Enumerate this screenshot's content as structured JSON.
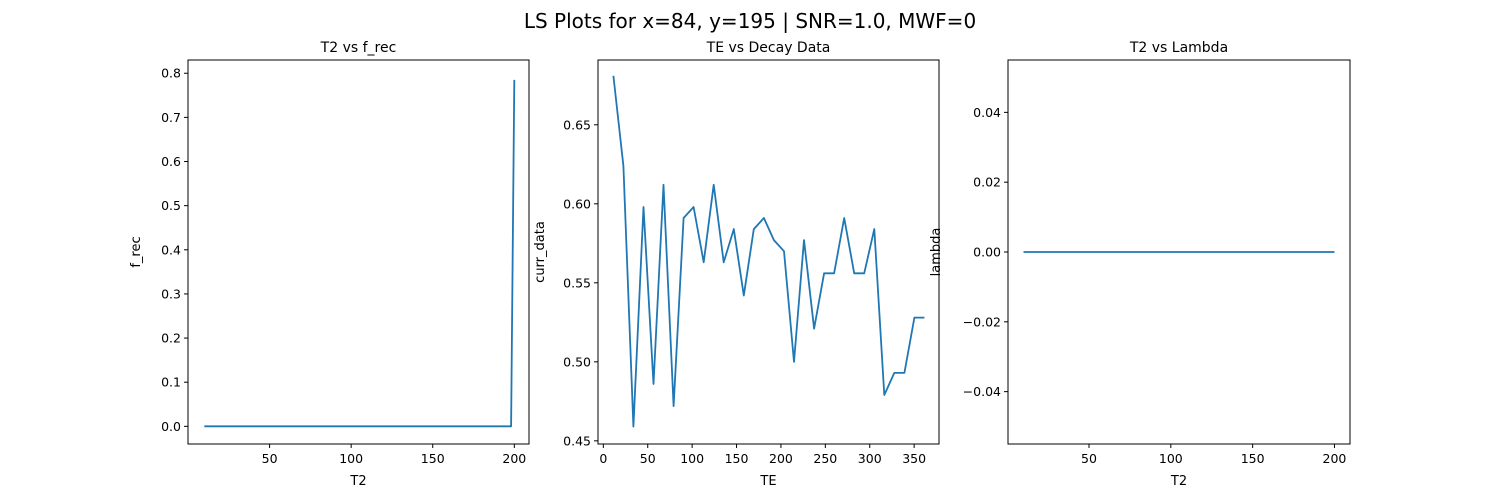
{
  "figure_title": "LS Plots for x=84, y=195 | SNR=1.0, MWF=0",
  "line_color": "#1f77b4",
  "chart_data": [
    {
      "type": "line",
      "title": "T2 vs f_rec",
      "xlabel": "T2",
      "ylabel": "f_rec",
      "xlim": [
        0,
        209
      ],
      "ylim": [
        -0.04,
        0.83
      ],
      "xticks": [
        50,
        100,
        150,
        200
      ],
      "xtick_labels": [
        "50",
        "100",
        "150",
        "200"
      ],
      "yticks": [
        0.0,
        0.1,
        0.2,
        0.3,
        0.4,
        0.5,
        0.6,
        0.7,
        0.8
      ],
      "ytick_labels": [
        "0.0",
        "0.1",
        "0.2",
        "0.3",
        "0.4",
        "0.5",
        "0.6",
        "0.7",
        "0.8"
      ],
      "series": [
        {
          "x": [
            10,
            198,
            200
          ],
          "y": [
            0.0,
            0.0,
            0.785
          ]
        }
      ]
    },
    {
      "type": "line",
      "title": "TE vs Decay Data",
      "xlabel": "TE",
      "ylabel": "curr_data",
      "xlim": [
        -6,
        378
      ],
      "ylim": [
        0.448,
        0.691
      ],
      "xticks": [
        0,
        50,
        100,
        150,
        200,
        250,
        300,
        350
      ],
      "xtick_labels": [
        "0",
        "50",
        "100",
        "150",
        "200",
        "250",
        "300",
        "350"
      ],
      "yticks": [
        0.45,
        0.5,
        0.55,
        0.6,
        0.65
      ],
      "ytick_labels": [
        "0.45",
        "0.50",
        "0.55",
        "0.60",
        "0.65"
      ],
      "series": [
        {
          "x": [
            11.3,
            22.6,
            33.9,
            39,
            45.2,
            56.5,
            67.8,
            79.1,
            90.4,
            101.7,
            113,
            124.3,
            135.6,
            146.9,
            158.2,
            169.5,
            180.8,
            192.1,
            203.4,
            214.7,
            226,
            237.3,
            248.6,
            259.9,
            271.2,
            282.5,
            293.8,
            305.1,
            316.4,
            327.7,
            339,
            350.3,
            361.6
          ],
          "y": [
            0.681,
            0.624,
            0.459,
            0.522,
            0.598,
            0.486,
            0.612,
            0.472,
            0.591,
            0.598,
            0.563,
            0.612,
            0.563,
            0.584,
            0.542,
            0.584,
            0.591,
            0.577,
            0.57,
            0.5,
            0.577,
            0.521,
            0.556,
            0.556,
            0.591,
            0.556,
            0.556,
            0.584,
            0.479,
            0.493,
            0.493,
            0.528,
            0.528
          ]
        }
      ]
    },
    {
      "type": "line",
      "title": "T2 vs Lambda",
      "xlabel": "T2",
      "ylabel": "lambda",
      "xlim": [
        0.5,
        209.5
      ],
      "ylim": [
        -0.055,
        0.055
      ],
      "xticks": [
        50,
        100,
        150,
        200
      ],
      "xtick_labels": [
        "50",
        "100",
        "150",
        "200"
      ],
      "yticks": [
        -0.04,
        -0.02,
        0.0,
        0.02,
        0.04
      ],
      "ytick_labels": [
        "−0.04",
        "−0.02",
        "0.00",
        "0.02",
        "0.04"
      ],
      "series": [
        {
          "x": [
            10,
            200
          ],
          "y": [
            0.0,
            0.0
          ]
        }
      ]
    }
  ]
}
